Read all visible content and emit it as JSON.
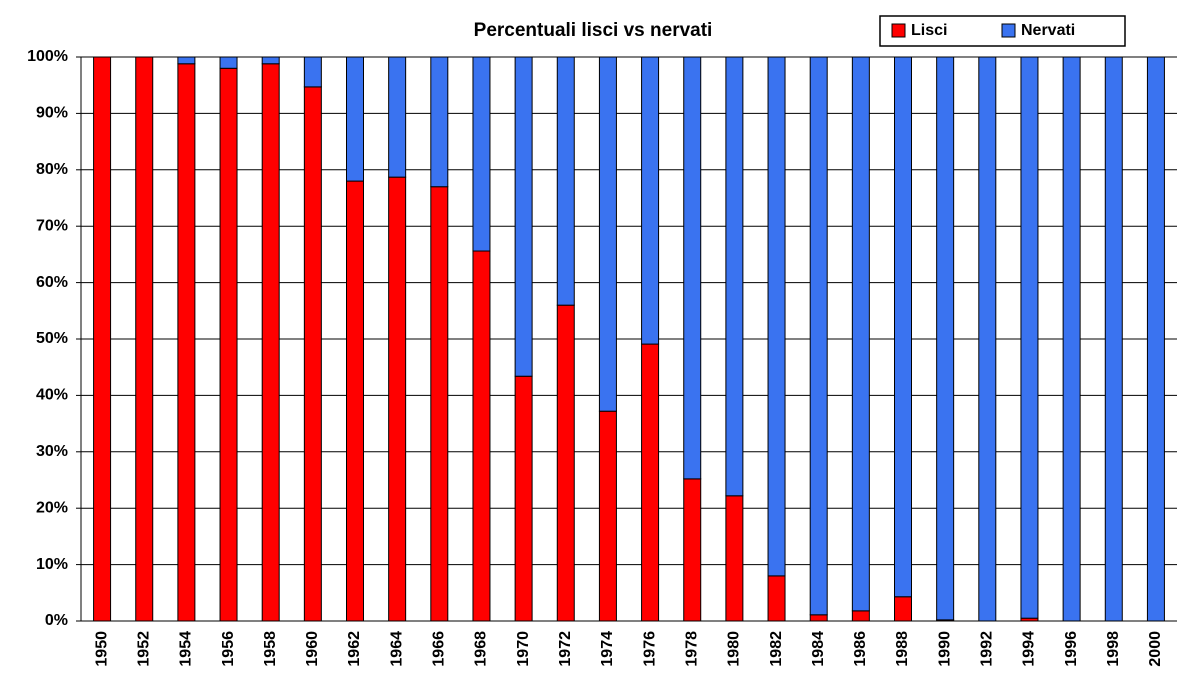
{
  "chart_data": {
    "type": "stacked_bar",
    "title": "Percentuali lisci vs nervati",
    "categories": [
      "1950",
      "1952",
      "1954",
      "1956",
      "1958",
      "1960",
      "1962",
      "1964",
      "1966",
      "1968",
      "1970",
      "1972",
      "1974",
      "1976",
      "1978",
      "1980",
      "1982",
      "1984",
      "1986",
      "1988",
      "1990",
      "1992",
      "1994",
      "1996",
      "1998",
      "2000"
    ],
    "series": [
      {
        "name": "Lisci",
        "color": "#ff0000",
        "values": [
          100,
          100,
          98.8,
          98,
          98.8,
          94.7,
          78,
          78.7,
          77,
          65.6,
          43.4,
          56,
          37.2,
          49.1,
          25.2,
          22.2,
          8,
          1.1,
          1.8,
          4.3,
          0.2,
          0,
          0.5,
          0,
          0,
          0
        ]
      },
      {
        "name": "Nervati",
        "color": "#3a73f0",
        "values": [
          0,
          0,
          1.2,
          2,
          1.2,
          5.3,
          22,
          21.3,
          23,
          34.4,
          56.6,
          44,
          62.8,
          50.9,
          74.8,
          77.8,
          92,
          98.9,
          98.2,
          95.7,
          99.8,
          100,
          99.5,
          100,
          100,
          100
        ]
      }
    ],
    "ylim": [
      0,
      100
    ],
    "yticks": [
      {
        "value": 0,
        "label": "0%"
      },
      {
        "value": 10,
        "label": "10%"
      },
      {
        "value": 20,
        "label": "20%"
      },
      {
        "value": 30,
        "label": "30%"
      },
      {
        "value": 40,
        "label": "40%"
      },
      {
        "value": 50,
        "label": "50%"
      },
      {
        "value": 60,
        "label": "60%"
      },
      {
        "value": 70,
        "label": "70%"
      },
      {
        "value": 80,
        "label": "80%"
      },
      {
        "value": 90,
        "label": "90%"
      },
      {
        "value": 100,
        "label": "100%"
      }
    ],
    "grid": true,
    "legend": "top-right"
  }
}
